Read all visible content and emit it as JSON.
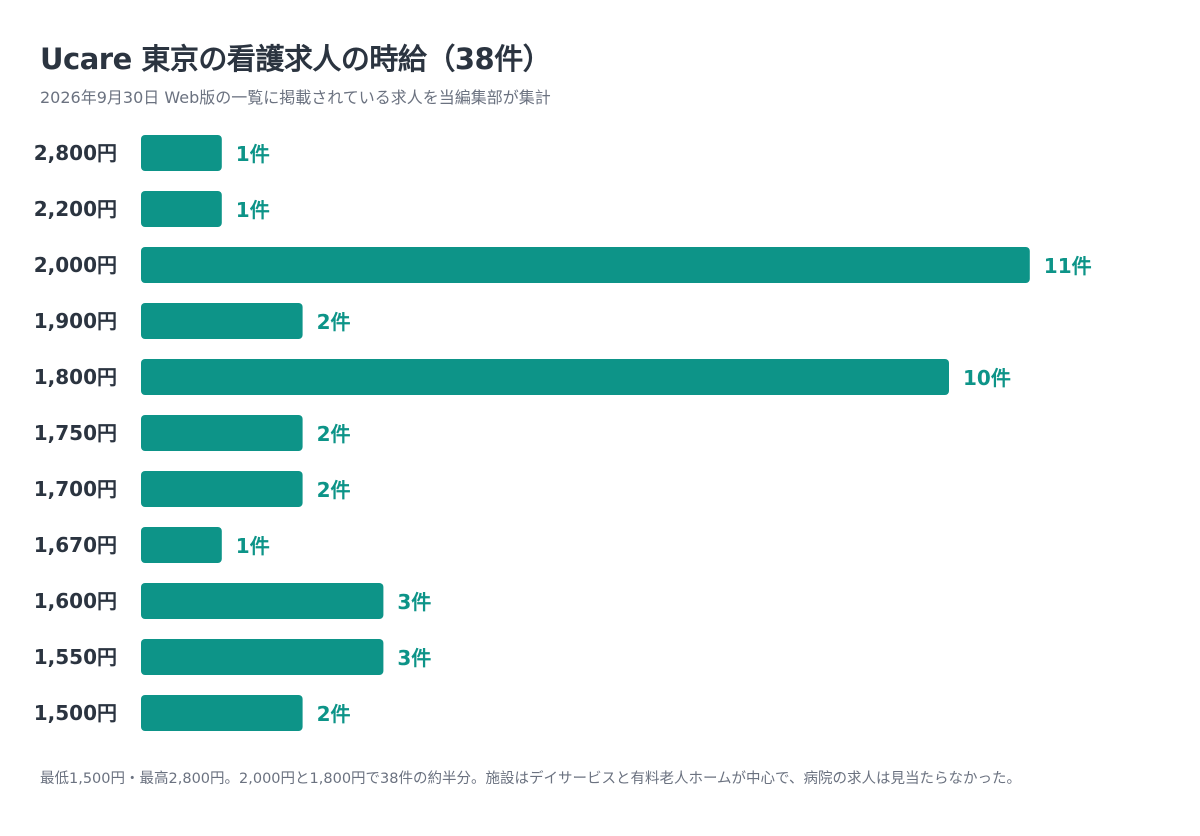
{
  "header": {
    "title": "Ucare 東京の看護求人の時給（38件）",
    "subtitle": "2026年9月30日 Web版の一覧に掲載されている求人を当編集部が集計"
  },
  "footer": {
    "note": "最低1,500円・最高2,800円。2,000円と1,800円で38件の約半分。施設はデイサービスと有料老人ホームが中心で、病院の求人は見当たらなかった。"
  },
  "colors": {
    "bar": "#0d9488",
    "value_label": "#0d9488",
    "category_label": "#2b3440"
  },
  "chart_data": {
    "type": "bar",
    "orientation": "horizontal",
    "categories": [
      "2,800円",
      "2,200円",
      "2,000円",
      "1,900円",
      "1,800円",
      "1,750円",
      "1,700円",
      "1,670円",
      "1,600円",
      "1,550円",
      "1,500円"
    ],
    "values": [
      1,
      1,
      11,
      2,
      10,
      2,
      2,
      1,
      3,
      3,
      2
    ],
    "value_labels": [
      "1件",
      "1件",
      "11件",
      "2件",
      "10件",
      "2件",
      "2件",
      "1件",
      "3件",
      "3件",
      "2件"
    ],
    "title": "Ucare 東京の看護求人の時給（38件）",
    "subtitle": "2026年9月30日 Web版の一覧に掲載されている求人を当編集部が集計",
    "xlabel": "",
    "ylabel": "",
    "xlim": [
      0,
      11
    ],
    "grid": false,
    "legend": "none"
  }
}
